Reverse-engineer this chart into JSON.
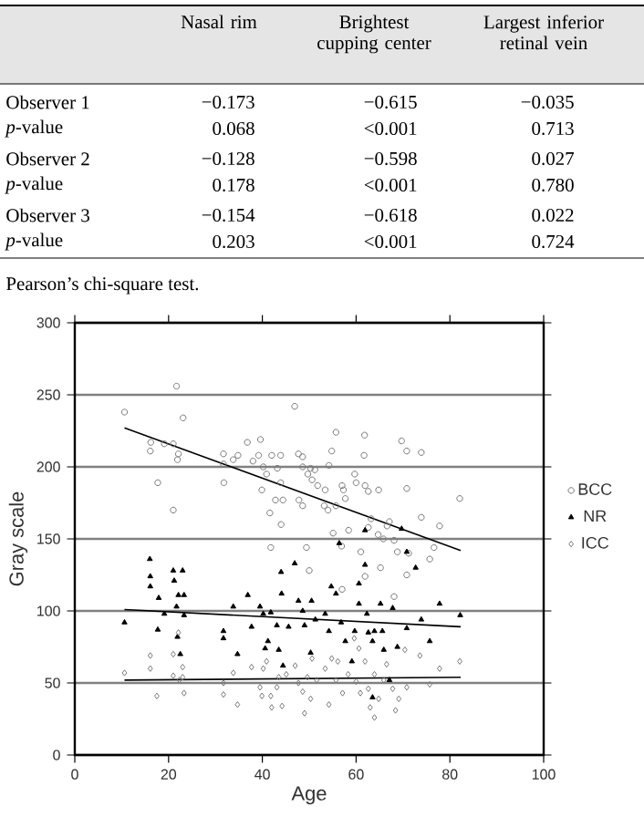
{
  "chart_data": [
    {
      "type": "other",
      "categories": [
        "Nasal rim",
        "Brightest cupping center",
        "Largest inferior retinal vein"
      ],
      "y_categories": [
        "Observer 1",
        "*p*-value",
        "Observer 2",
        "*p*-value",
        "Observer 3",
        "*p*-value"
      ],
      "cell_labels": [
        [
          "−0.173",
          "−0.615",
          "−0.035"
        ],
        [
          "0.068",
          "<0.001",
          "0.713"
        ],
        [
          "−0.128",
          "−0.598",
          "0.027"
        ],
        [
          "0.178",
          "<0.001",
          "0.780"
        ],
        [
          "−0.154",
          "−0.618",
          "0.022"
        ],
        [
          "0.203",
          "<0.001",
          "0.724"
        ]
      ],
      "annotations": [
        "Pearson’s chi-square test."
      ]
    },
    {
      "type": "scatter",
      "xlabel": "Age",
      "ylabel": "Gray scale",
      "xlim": [
        0,
        100
      ],
      "ylim": [
        0,
        300
      ],
      "xticks": [
        0,
        20,
        40,
        60,
        80,
        100
      ],
      "yticks": [
        0,
        50,
        100,
        150,
        200,
        250,
        300
      ],
      "grid": "y",
      "legend": "right",
      "series": [
        {
          "name": "BCC",
          "color": "#777777",
          "marker": "circle",
          "x": [
            10.6,
            21.7,
            17.7,
            16.2,
            16.1,
            19.1,
            21.0,
            22.1,
            21.9,
            23.1,
            21.0,
            31.7,
            31.7,
            31.8,
            33.8,
            34.8,
            36.8,
            38.0,
            39.6,
            39.2,
            40.2,
            40.9,
            39.9,
            41.6,
            42.0,
            41.8,
            43.2,
            42.8,
            43.9,
            44.4,
            43.9,
            44.0,
            46.9,
            47.7,
            48.6,
            48.6,
            47.8,
            48.6,
            49.7,
            50.3,
            50.6,
            51.2,
            50.0,
            49.4,
            51.8,
            53.4,
            53.2,
            54.0,
            54.8,
            55.7,
            54.2,
            55.7,
            55.1,
            57.0,
            57.3,
            57.7,
            56.9,
            58.4,
            59.7,
            60.0,
            61.8,
            61.7,
            61.9,
            62.6,
            63.2,
            61.0,
            61.9,
            64.8,
            62.6,
            64.7,
            65.8,
            66.6,
            65.2,
            67.1,
            68.1,
            68.8,
            69.7,
            70.8,
            70.8,
            70.8,
            73.9,
            73.9,
            75.7,
            77.8,
            76.6,
            82.1,
            71.2,
            57.0,
            68.1
          ],
          "values": [
            238,
            256,
            189,
            217,
            211,
            216,
            216,
            209,
            205,
            234,
            170,
            209,
            202,
            189,
            205,
            208,
            217,
            204,
            219,
            208,
            200,
            195,
            184,
            168,
            208,
            144,
            199,
            177,
            208,
            177,
            189,
            160,
            242,
            209,
            207,
            200,
            177,
            173,
            195,
            199,
            191,
            198,
            128,
            144,
            187,
            184,
            173,
            170,
            211,
            224,
            201,
            173,
            154,
            187,
            184,
            178,
            145,
            156,
            195,
            189,
            222,
            208,
            187,
            183,
            164,
            141,
            124,
            184,
            158,
            153,
            150,
            159,
            130,
            162,
            149,
            141,
            218,
            211,
            185,
            125,
            210,
            165,
            136,
            159,
            144,
            178,
            140,
            115,
            110
          ]
        },
        {
          "name": "NR",
          "color": "#000000",
          "marker": "triangle",
          "x": [
            10.6,
            16.0,
            16.1,
            16.1,
            17.7,
            17.9,
            19.1,
            21.0,
            21.2,
            22.1,
            21.7,
            21.9,
            22.5,
            23.0,
            23.3,
            23.3,
            31.7,
            31.7,
            33.8,
            34.7,
            36.9,
            37.7,
            39.5,
            40.2,
            40.6,
            41.2,
            41.8,
            43.1,
            43.5,
            44.0,
            44.1,
            44.4,
            45.6,
            46.9,
            47.7,
            48.6,
            49.0,
            50.5,
            51.3,
            50.3,
            53.4,
            54.2,
            54.7,
            55.7,
            56.4,
            56.8,
            57.7,
            59.1,
            59.7,
            60.6,
            60.6,
            61.9,
            61.9,
            62.3,
            62.6,
            63.5,
            63.9,
            65.2,
            65.6,
            65.9,
            67.8,
            68.8,
            69.7,
            70.8,
            70.8,
            72.7,
            73.9,
            75.7,
            77.8,
            82.2,
            63.5,
            67.1
          ],
          "values": [
            92,
            136,
            124,
            117,
            87,
            109,
            98,
            128,
            121,
            111,
            103,
            82,
            70,
            128,
            111,
            97,
            86,
            81,
            103,
            70,
            111,
            89,
            103,
            98,
            74,
            79,
            99,
            90,
            73,
            127,
            112,
            62,
            89,
            133,
            107,
            100,
            90,
            107,
            94,
            71,
            98,
            86,
            117,
            112,
            147,
            92,
            79,
            65,
            86,
            119,
            105,
            156,
            132,
            98,
            85,
            79,
            86,
            105,
            86,
            73,
            102,
            75,
            157,
            141,
            88,
            130,
            94,
            79,
            105,
            97,
            40,
            52
          ]
        },
        {
          "name": "ICC",
          "color": "#777777",
          "marker": "diamond",
          "x": [
            10.6,
            16.1,
            16.1,
            17.5,
            21.0,
            21.0,
            22.1,
            22.3,
            23.0,
            23.0,
            23.3,
            31.7,
            31.7,
            33.8,
            34.7,
            37.7,
            39.5,
            39.9,
            40.2,
            40.9,
            41.8,
            42.0,
            43.1,
            43.5,
            44.2,
            45.1,
            47.0,
            47.7,
            48.6,
            49.0,
            49.6,
            50.3,
            50.6,
            51.6,
            53.4,
            54.2,
            54.8,
            55.7,
            56.1,
            57.1,
            58.3,
            59.6,
            60.0,
            60.9,
            61.9,
            62.6,
            63.0,
            63.9,
            63.9,
            64.8,
            65.9,
            66.5,
            67.8,
            68.4,
            69.1,
            70.4,
            70.8,
            73.6,
            75.7,
            77.8,
            82.1,
            60.6
          ],
          "values": [
            57,
            69,
            60,
            41,
            70,
            55,
            85,
            52,
            61,
            54,
            43,
            50,
            42,
            57,
            35,
            61,
            47,
            41,
            60,
            65,
            41,
            33,
            47,
            54,
            34,
            56,
            62,
            50,
            44,
            29,
            54,
            39,
            67,
            52,
            60,
            35,
            67,
            52,
            65,
            43,
            56,
            81,
            51,
            43,
            65,
            46,
            33,
            56,
            26,
            39,
            52,
            63,
            46,
            31,
            39,
            73,
            47,
            69,
            49,
            60,
            65,
            74
          ]
        },
        {
          "type": "line",
          "color": "#000000",
          "x": [
            10.6,
            82.3
          ],
          "values": [
            227,
            142
          ]
        },
        {
          "type": "line",
          "color": "#000000",
          "x": [
            10.6,
            82.3
          ],
          "values": [
            101,
            89
          ]
        },
        {
          "type": "line",
          "color": "#000000",
          "x": [
            10.6,
            82.3
          ],
          "values": [
            52,
            54
          ]
        }
      ]
    }
  ]
}
